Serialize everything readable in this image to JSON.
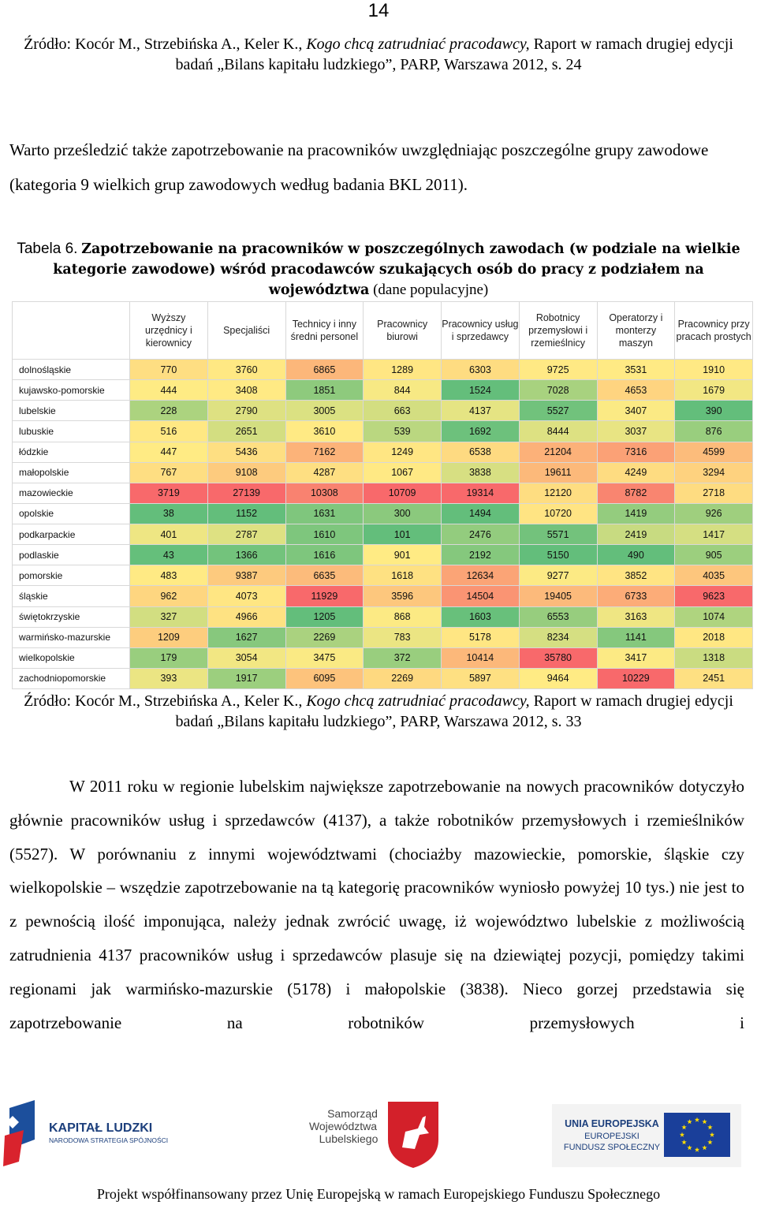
{
  "page_number": "14",
  "source_top": {
    "authors": "Źródło: Kocór M., Strzebińska A., Keler K.,",
    "title": "Kogo chcą zatrudniać pracodawcy,",
    "rest": "Raport w ramach drugiej edycji badań „Bilans kapitału ludzkiego”, PARP, Warszawa 2012, s. 24"
  },
  "intro": "Warto prześledzić także zapotrzebowanie na pracowników uwzględniając poszczególne grupy zawodowe (kategoria 9 wielkich grup zawodowych według badania BKL 2011).",
  "caption": {
    "label": "Tabela 6.",
    "title": "Zapotrzebowanie na pracowników w poszczególnych zawodach (w podziale na wielkie kategorie zawodowe) wśród pracodawców szukających osób do pracy z podziałem na województwa",
    "note": "(dane populacyjne)"
  },
  "table": {
    "columns": [
      "Wyższy urzędnicy i kierownicy",
      "Specjaliści",
      "Technicy i inny średni personel",
      "Pracownicy biurowi",
      "Pracownicy usług i sprzedawcy",
      "Robotnicy przemysłowi i rzemieślnicy",
      "Operatorzy i monterzy maszyn",
      "Pracownicy przy pracach prostych"
    ],
    "rows": [
      {
        "name": "dolnośląskie",
        "values": [
          770,
          3760,
          6865,
          1289,
          6303,
          9725,
          3531,
          1910
        ]
      },
      {
        "name": "kujawsko-pomorskie",
        "values": [
          444,
          3408,
          1851,
          844,
          1524,
          7028,
          4653,
          1679
        ]
      },
      {
        "name": "lubelskie",
        "values": [
          228,
          2790,
          3005,
          663,
          4137,
          5527,
          3407,
          390
        ]
      },
      {
        "name": "lubuskie",
        "values": [
          516,
          2651,
          3610,
          539,
          1692,
          8444,
          3037,
          876
        ]
      },
      {
        "name": "łódzkie",
        "values": [
          447,
          5436,
          7162,
          1249,
          6538,
          21204,
          7316,
          4599
        ]
      },
      {
        "name": "małopolskie",
        "values": [
          767,
          9108,
          4287,
          1067,
          3838,
          19611,
          4249,
          3294
        ]
      },
      {
        "name": "mazowieckie",
        "values": [
          3719,
          27139,
          10308,
          10709,
          19314,
          12120,
          8782,
          2718
        ]
      },
      {
        "name": "opolskie",
        "values": [
          38,
          1152,
          1631,
          300,
          1494,
          10720,
          1419,
          926
        ]
      },
      {
        "name": "podkarpackie",
        "values": [
          401,
          2787,
          1610,
          101,
          2476,
          5571,
          2419,
          1417
        ]
      },
      {
        "name": "podlaskie",
        "values": [
          43,
          1366,
          1616,
          901,
          2192,
          5150,
          490,
          905
        ]
      },
      {
        "name": "pomorskie",
        "values": [
          483,
          9387,
          6635,
          1618,
          12634,
          9277,
          3852,
          4035
        ]
      },
      {
        "name": "śląskie",
        "values": [
          962,
          4073,
          11929,
          3596,
          14504,
          19405,
          6733,
          9623
        ]
      },
      {
        "name": "świętokrzyskie",
        "values": [
          327,
          4966,
          1205,
          868,
          1603,
          6553,
          3163,
          1074
        ]
      },
      {
        "name": "warmińsko-mazurskie",
        "values": [
          1209,
          1627,
          2269,
          783,
          5178,
          8234,
          1141,
          2018
        ]
      },
      {
        "name": "wielkopolskie",
        "values": [
          179,
          3054,
          3475,
          372,
          10414,
          35780,
          3417,
          1318
        ]
      },
      {
        "name": "zachodniopomorskie",
        "values": [
          393,
          1917,
          6095,
          2269,
          5897,
          9464,
          10229,
          2451
        ]
      }
    ]
  },
  "source_bottom": {
    "authors": "Źródło: Kocór M., Strzebińska A., Keler K.,",
    "title": "Kogo chcą zatrudniać pracodawcy,",
    "rest": "Raport w ramach drugiej edycji badań „Bilans kapitału ludzkiego”, PARP, Warszawa 2012, s. 33"
  },
  "body": "W 2011 roku w regionie lubelskim największe zapotrzebowanie na nowych pracowników dotyczyło głównie pracowników usług i sprzedawców (4137), a także robotników przemysłowych i rzemieślników (5527). W porównaniu z innymi województwami (chociażby mazowieckie, pomorskie, śląskie czy wielkopolskie – wszędzie zapotrzebowanie na tą kategorię pracowników wyniosło powyżej 10 tys.) nie jest to z pewnością ilość imponująca, należy jednak zwrócić uwagę, iż województwo lubelskie z możliwością zatrudnienia 4137 pracowników usług i sprzedawców plasuje się na dziewiątej pozycji, pomiędzy takimi regionami jak warmińsko-mazurskie (5178) i małopolskie (3838). Nieco gorzej przedstawia się zapotrzebowanie na robotników przemysłowych i",
  "logos": {
    "kl_title": "KAPITAŁ LUDZKI",
    "kl_sub": "NARODOWA STRATEGIA SPÓJNOŚCI",
    "sam_1": "Samorząd",
    "sam_2": "Województwa",
    "sam_3": "Lubelskiego",
    "ue_1": "UNIA EUROPEJSKA",
    "ue_2": "EUROPEJSKI",
    "ue_3": "FUNDUSZ SPOŁECZNY"
  },
  "footer": "Projekt współfinansowany przez Unię Europejską w ramach Europejskiego Funduszu Społecznego"
}
